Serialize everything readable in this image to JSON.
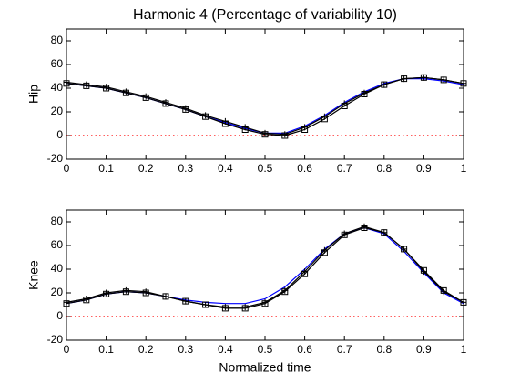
{
  "chart_data": [
    {
      "type": "line",
      "title": "Harmonic 4 (Percentage of variability 10)",
      "ylabel": "Hip",
      "x": [
        0,
        0.05,
        0.1,
        0.15,
        0.2,
        0.25,
        0.3,
        0.35,
        0.4,
        0.45,
        0.5,
        0.55,
        0.6,
        0.65,
        0.7,
        0.75,
        0.8,
        0.85,
        0.9,
        0.95,
        1
      ],
      "series": [
        {
          "color": "#0000ff",
          "style": "solid",
          "values": [
            44,
            42,
            40,
            36,
            32,
            27,
            22,
            16,
            11,
            6,
            2,
            2,
            8,
            17,
            28,
            37,
            44,
            48,
            48,
            46,
            43
          ]
        },
        {
          "color": "#000000",
          "style": "solid",
          "marker": "plus",
          "values": [
            45,
            43,
            41,
            37,
            33,
            28,
            23,
            17,
            12,
            7,
            2,
            1,
            7,
            16,
            27,
            36,
            43,
            48,
            49,
            47,
            44
          ]
        },
        {
          "color": "#000000",
          "style": "solid",
          "marker": "square",
          "values": [
            44,
            42,
            40,
            36,
            32,
            27,
            22,
            16,
            10,
            5,
            1,
            0,
            5,
            14,
            25,
            35,
            43,
            48,
            49,
            47,
            44
          ]
        }
      ],
      "reference_line": {
        "value": 0,
        "color": "#ff0000"
      },
      "xlim": [
        0,
        1
      ],
      "xticks": [
        0,
        0.1,
        0.2,
        0.3,
        0.4,
        0.5,
        0.6,
        0.7,
        0.8,
        0.9,
        1
      ],
      "ylim": [
        -20,
        90
      ],
      "yticks": [
        -20,
        0,
        20,
        40,
        60,
        80
      ]
    },
    {
      "type": "line",
      "ylabel": "Knee",
      "xlabel": "Normalized time",
      "x": [
        0,
        0.05,
        0.1,
        0.15,
        0.2,
        0.25,
        0.3,
        0.35,
        0.4,
        0.45,
        0.5,
        0.55,
        0.6,
        0.65,
        0.7,
        0.75,
        0.8,
        0.85,
        0.9,
        0.95,
        1
      ],
      "series": [
        {
          "color": "#0000ff",
          "style": "solid",
          "values": [
            11,
            14,
            19,
            21,
            20,
            17,
            14,
            12,
            11,
            11,
            15,
            25,
            40,
            57,
            70,
            75,
            70,
            55,
            37,
            20,
            11
          ]
        },
        {
          "color": "#000000",
          "style": "solid",
          "marker": "plus",
          "values": [
            12,
            15,
            20,
            22,
            21,
            17,
            13,
            10,
            8,
            8,
            12,
            22,
            38,
            56,
            70,
            76,
            71,
            57,
            38,
            21,
            12
          ]
        },
        {
          "color": "#000000",
          "style": "solid",
          "marker": "square",
          "values": [
            11,
            14,
            19,
            21,
            20,
            17,
            13,
            10,
            7,
            7,
            11,
            21,
            36,
            54,
            69,
            75,
            71,
            57,
            39,
            22,
            12
          ]
        }
      ],
      "reference_line": {
        "value": 0,
        "color": "#ff0000"
      },
      "xlim": [
        0,
        1
      ],
      "xticks": [
        0,
        0.1,
        0.2,
        0.3,
        0.4,
        0.5,
        0.6,
        0.7,
        0.8,
        0.9,
        1
      ],
      "ylim": [
        -20,
        90
      ],
      "yticks": [
        -20,
        0,
        20,
        40,
        60,
        80
      ]
    }
  ]
}
